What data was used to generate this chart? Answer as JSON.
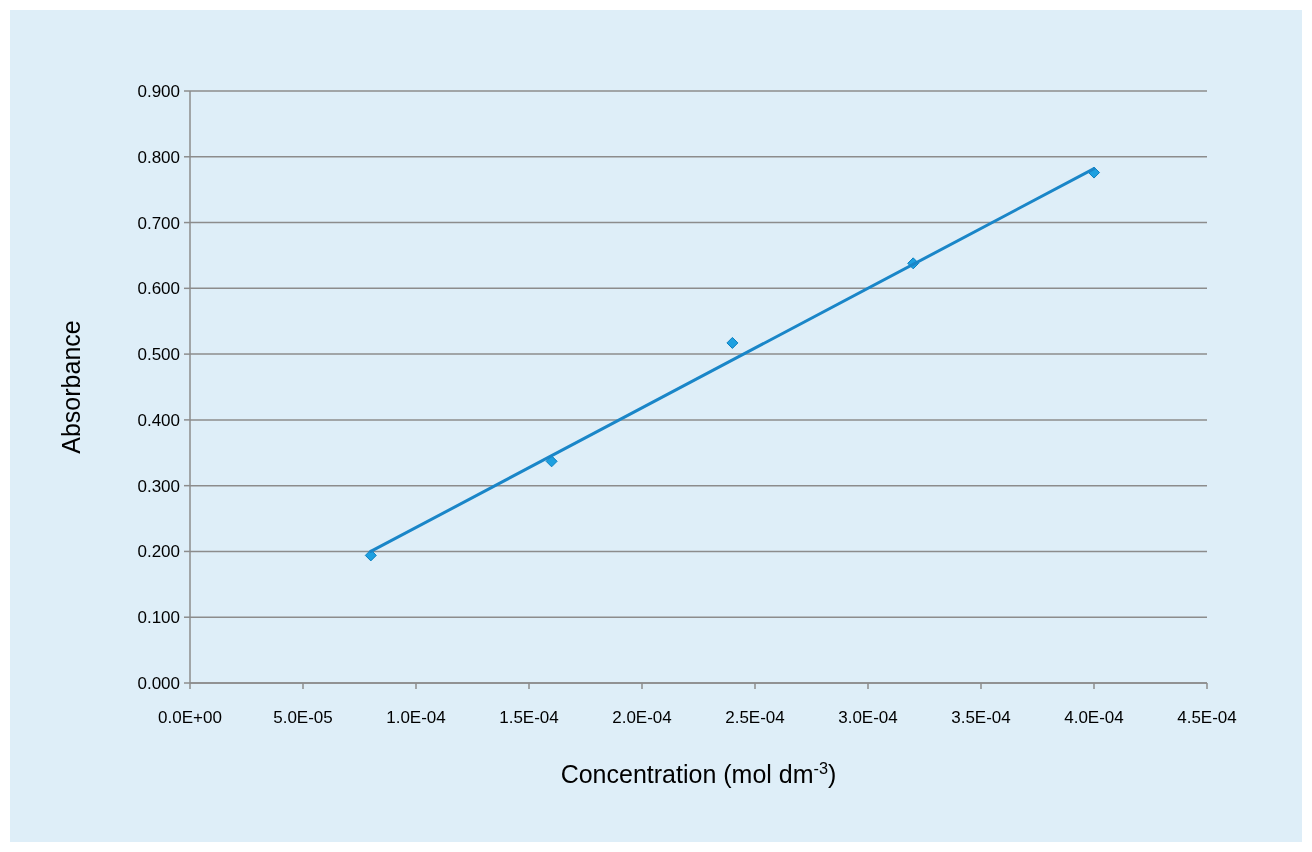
{
  "chart_data": {
    "type": "scatter",
    "xlabel": "Concentration (mol dm$^{-3}$)",
    "ylabel": "Absorbance",
    "x": [
      8e-05,
      0.00016,
      0.00024,
      0.00032,
      0.0004
    ],
    "series": [
      {
        "color": "#1ea0e0",
        "values": [
          0.194,
          0.337,
          0.517,
          0.638,
          0.776
        ],
        "marker": "diamond"
      },
      {
        "type": "line",
        "color": "#1a86c8",
        "x": [
          8e-05,
          0.0004
        ],
        "values": [
          0.2,
          0.782
        ],
        "marker": "none",
        "line_style": "solid"
      }
    ],
    "xlim": [
      0,
      0.00045
    ],
    "xticks": [
      {
        "value": 0,
        "label": "0.0E+00"
      },
      {
        "value": 5e-05,
        "label": "5.0E-05"
      },
      {
        "value": 0.0001,
        "label": "1.0E-04"
      },
      {
        "value": 0.00015,
        "label": "1.5E-04"
      },
      {
        "value": 0.0002,
        "label": "2.0E-04"
      },
      {
        "value": 0.00025,
        "label": "2.5E-04"
      },
      {
        "value": 0.0003,
        "label": "3.0E-04"
      },
      {
        "value": 0.00035,
        "label": "3.5E-04"
      },
      {
        "value": 0.0004,
        "label": "4.0E-04"
      },
      {
        "value": 0.00045,
        "label": "4.5E-04"
      }
    ],
    "ylim": [
      0,
      0.9
    ],
    "yticks": [
      {
        "value": 0,
        "label": "0.000"
      },
      {
        "value": 0.1,
        "label": "0.100"
      },
      {
        "value": 0.2,
        "label": "0.200"
      },
      {
        "value": 0.3,
        "label": "0.300"
      },
      {
        "value": 0.4,
        "label": "0.400"
      },
      {
        "value": 0.5,
        "label": "0.500"
      },
      {
        "value": 0.6,
        "label": "0.600"
      },
      {
        "value": 0.7,
        "label": "0.700"
      },
      {
        "value": 0.8,
        "label": "0.800"
      },
      {
        "value": 0.9,
        "label": "0.900"
      }
    ],
    "grid": "y"
  }
}
